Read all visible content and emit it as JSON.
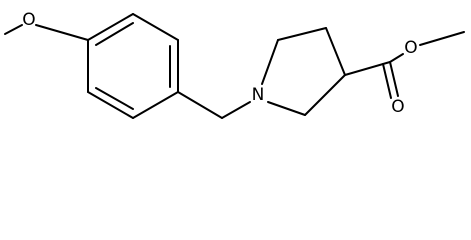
{
  "atoms": {
    "methoxy_oxygen": "O",
    "nitrogen": "N",
    "ester_oxygen": "O",
    "carbonyl_oxygen": "O"
  }
}
